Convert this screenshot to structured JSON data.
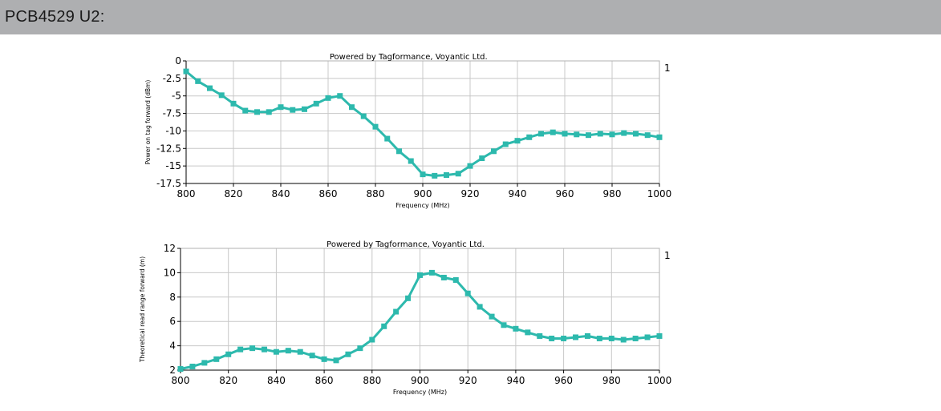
{
  "page": {
    "heading": "PCB4529 U2:"
  },
  "colors": {
    "header_bg": "#aeafb1",
    "series": "#2db9ad",
    "grid": "#c8c8c8",
    "axis": "#000000"
  },
  "chart_data": [
    {
      "type": "line",
      "title": "Powered by Tagformance, Voyantic Ltd.",
      "xlabel": "Frequency (MHz)",
      "ylabel": "Power on tag forward (dBm)",
      "xlim": [
        800,
        1000
      ],
      "ylim": [
        -17.5,
        0
      ],
      "xticks": [
        800,
        820,
        840,
        860,
        880,
        900,
        920,
        940,
        960,
        980,
        1000
      ],
      "yticks": [
        0,
        -2.5,
        -5,
        -7.5,
        -10,
        -12.5,
        -15,
        -17.5
      ],
      "ytick_labels": [
        "0",
        "-2.5",
        "-5",
        "-7.5",
        "-10",
        "-12.5",
        "-15",
        "-17.5"
      ],
      "legend": "1",
      "grid": true,
      "series": [
        {
          "name": "1",
          "x": [
            800,
            805,
            810,
            815,
            820,
            825,
            830,
            835,
            840,
            845,
            850,
            855,
            860,
            865,
            870,
            875,
            880,
            885,
            890,
            895,
            900,
            905,
            910,
            915,
            920,
            925,
            930,
            935,
            940,
            945,
            950,
            955,
            960,
            965,
            970,
            975,
            980,
            985,
            990,
            995,
            1000
          ],
          "y": [
            -1.5,
            -2.9,
            -3.9,
            -4.9,
            -6.1,
            -7.1,
            -7.3,
            -7.3,
            -6.6,
            -7.0,
            -6.9,
            -6.1,
            -5.3,
            -5.0,
            -6.6,
            -7.9,
            -9.4,
            -11.1,
            -12.9,
            -14.3,
            -16.2,
            -16.4,
            -16.3,
            -16.1,
            -15.0,
            -13.9,
            -12.9,
            -11.9,
            -11.4,
            -10.9,
            -10.4,
            -10.2,
            -10.4,
            -10.5,
            -10.6,
            -10.4,
            -10.5,
            -10.3,
            -10.4,
            -10.6,
            -10.9
          ]
        }
      ]
    },
    {
      "type": "line",
      "title": "Powered by Tagformance, Voyantic Ltd.",
      "xlabel": "Frequency (MHz)",
      "ylabel": "Theoretical read range forward (m)",
      "xlim": [
        800,
        1000
      ],
      "ylim": [
        2,
        12
      ],
      "xticks": [
        800,
        820,
        840,
        860,
        880,
        900,
        920,
        940,
        960,
        980,
        1000
      ],
      "yticks": [
        12,
        10,
        8,
        6,
        4,
        2
      ],
      "ytick_labels": [
        "12",
        "10",
        "8",
        "6",
        "4",
        "2"
      ],
      "legend": "1",
      "grid": true,
      "series": [
        {
          "name": "1",
          "x": [
            800,
            805,
            810,
            815,
            820,
            825,
            830,
            835,
            840,
            845,
            850,
            855,
            860,
            865,
            870,
            875,
            880,
            885,
            890,
            895,
            900,
            905,
            910,
            915,
            920,
            925,
            930,
            935,
            940,
            945,
            950,
            955,
            960,
            965,
            970,
            975,
            980,
            985,
            990,
            995,
            1000
          ],
          "y": [
            2.1,
            2.3,
            2.6,
            2.9,
            3.3,
            3.7,
            3.8,
            3.7,
            3.5,
            3.6,
            3.5,
            3.2,
            2.9,
            2.8,
            3.3,
            3.8,
            4.5,
            5.6,
            6.8,
            7.9,
            9.8,
            10.0,
            9.6,
            9.4,
            8.3,
            7.2,
            6.4,
            5.7,
            5.4,
            5.1,
            4.8,
            4.6,
            4.6,
            4.7,
            4.8,
            4.6,
            4.6,
            4.5,
            4.6,
            4.7,
            4.8
          ]
        }
      ]
    }
  ]
}
